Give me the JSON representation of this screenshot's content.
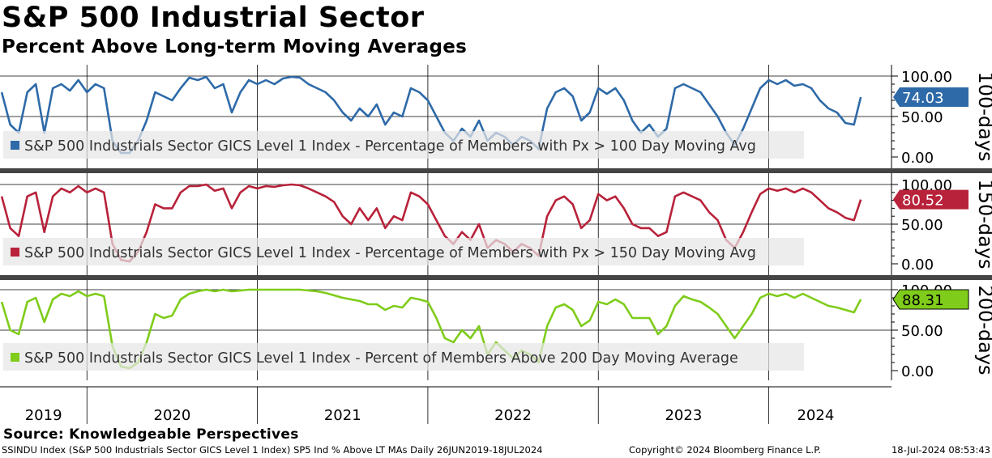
{
  "title": "S&P 500 Industrial Sector",
  "subtitle": "Percent Above Long-term Moving Averages",
  "source": "Source: Knowledgeable Perspectives",
  "footer": {
    "left": "SSINDU Index (S&P 500 Industrials Sector GICS Level 1 Index) SP5 Ind % Above LT MAs  Daily 26JUN2019-18JUL2024",
    "middle": "Copyright© 2024 Bloomberg Finance L.P.",
    "right": "18-Jul-2024 08:53:43"
  },
  "chart_data": [
    {
      "type": "line",
      "panel_label": "100-days",
      "legend": "S&P 500 Industrials Sector GICS Level 1 Index - Percentage of Members with Px > 100 Day Moving Avg",
      "last_value": "74.03",
      "color": "#2e6aa8",
      "faded_color": "#96b6d6",
      "y_ticks": [
        "100.00",
        "50.00",
        "0.00"
      ],
      "ylim": [
        0,
        100
      ],
      "x": [
        2019.5,
        2019.55,
        2019.6,
        2019.65,
        2019.7,
        2019.75,
        2019.8,
        2019.85,
        2019.9,
        2019.95,
        2020.0,
        2020.05,
        2020.1,
        2020.15,
        2020.2,
        2020.25,
        2020.3,
        2020.35,
        2020.4,
        2020.45,
        2020.5,
        2020.55,
        2020.6,
        2020.65,
        2020.7,
        2020.75,
        2020.8,
        2020.85,
        2020.9,
        2020.95,
        2021.0,
        2021.05,
        2021.1,
        2021.15,
        2021.2,
        2021.25,
        2021.3,
        2021.35,
        2021.4,
        2021.45,
        2021.5,
        2021.55,
        2021.6,
        2021.65,
        2021.7,
        2021.75,
        2021.8,
        2021.85,
        2021.9,
        2021.95,
        2022.0,
        2022.05,
        2022.1,
        2022.15,
        2022.2,
        2022.25,
        2022.3,
        2022.35,
        2022.4,
        2022.45,
        2022.5,
        2022.55,
        2022.6,
        2022.65,
        2022.7,
        2022.75,
        2022.8,
        2022.85,
        2022.9,
        2022.95,
        2023.0,
        2023.05,
        2023.1,
        2023.15,
        2023.2,
        2023.25,
        2023.3,
        2023.35,
        2023.4,
        2023.45,
        2023.5,
        2023.55,
        2023.6,
        2023.65,
        2023.7,
        2023.75,
        2023.8,
        2023.85,
        2023.9,
        2023.95,
        2024.0,
        2024.05,
        2024.1,
        2024.15,
        2024.2,
        2024.25,
        2024.3,
        2024.35,
        2024.4,
        2024.45,
        2024.5,
        2024.54
      ],
      "values": [
        80,
        40,
        30,
        80,
        90,
        30,
        85,
        90,
        82,
        95,
        80,
        90,
        85,
        20,
        5,
        5,
        20,
        45,
        80,
        75,
        70,
        85,
        98,
        95,
        99,
        85,
        90,
        55,
        80,
        95,
        90,
        95,
        90,
        97,
        99,
        98,
        90,
        85,
        80,
        70,
        55,
        45,
        60,
        50,
        65,
        40,
        55,
        50,
        85,
        80,
        70,
        50,
        30,
        20,
        35,
        25,
        45,
        20,
        30,
        25,
        15,
        25,
        20,
        10,
        60,
        80,
        85,
        75,
        45,
        55,
        85,
        78,
        85,
        70,
        45,
        30,
        40,
        25,
        35,
        85,
        90,
        85,
        80,
        65,
        50,
        30,
        15,
        35,
        60,
        85,
        95,
        90,
        95,
        88,
        90,
        85,
        70,
        60,
        55,
        42,
        40,
        74
      ]
    },
    {
      "type": "line",
      "panel_label": "150-days",
      "legend": "S&P 500 Industrials Sector GICS Level 1 Index - Percentage of Members with Px > 150 Day Moving Avg",
      "last_value": "80.52",
      "color": "#b8223a",
      "faded_color": "#dc9aa6",
      "y_ticks": [
        "100.00",
        "50.00",
        "0.00"
      ],
      "ylim": [
        0,
        100
      ],
      "x": [
        2019.5,
        2019.55,
        2019.6,
        2019.65,
        2019.7,
        2019.75,
        2019.8,
        2019.85,
        2019.9,
        2019.95,
        2020.0,
        2020.05,
        2020.1,
        2020.15,
        2020.2,
        2020.25,
        2020.3,
        2020.35,
        2020.4,
        2020.45,
        2020.5,
        2020.55,
        2020.6,
        2020.65,
        2020.7,
        2020.75,
        2020.8,
        2020.85,
        2020.9,
        2020.95,
        2021.0,
        2021.05,
        2021.1,
        2021.15,
        2021.2,
        2021.25,
        2021.3,
        2021.35,
        2021.4,
        2021.45,
        2021.5,
        2021.55,
        2021.6,
        2021.65,
        2021.7,
        2021.75,
        2021.8,
        2021.85,
        2021.9,
        2021.95,
        2022.0,
        2022.05,
        2022.1,
        2022.15,
        2022.2,
        2022.25,
        2022.3,
        2022.35,
        2022.4,
        2022.45,
        2022.5,
        2022.55,
        2022.6,
        2022.65,
        2022.7,
        2022.75,
        2022.8,
        2022.85,
        2022.9,
        2022.95,
        2023.0,
        2023.05,
        2023.1,
        2023.15,
        2023.2,
        2023.25,
        2023.3,
        2023.35,
        2023.4,
        2023.45,
        2023.5,
        2023.55,
        2023.6,
        2023.65,
        2023.7,
        2023.75,
        2023.8,
        2023.85,
        2023.9,
        2023.95,
        2024.0,
        2024.05,
        2024.1,
        2024.15,
        2024.2,
        2024.25,
        2024.3,
        2024.35,
        2024.4,
        2024.45,
        2024.5,
        2024.54
      ],
      "values": [
        85,
        45,
        35,
        85,
        90,
        40,
        85,
        95,
        90,
        98,
        90,
        95,
        90,
        25,
        5,
        3,
        15,
        40,
        75,
        70,
        70,
        90,
        98,
        98,
        100,
        92,
        95,
        70,
        90,
        98,
        95,
        98,
        97,
        99,
        100,
        99,
        95,
        90,
        85,
        78,
        60,
        50,
        70,
        55,
        70,
        45,
        60,
        55,
        90,
        85,
        75,
        55,
        35,
        25,
        40,
        30,
        50,
        20,
        30,
        25,
        15,
        25,
        20,
        10,
        60,
        80,
        85,
        75,
        45,
        55,
        88,
        80,
        85,
        70,
        50,
        45,
        45,
        35,
        40,
        85,
        90,
        85,
        80,
        65,
        55,
        30,
        20,
        40,
        65,
        88,
        95,
        92,
        95,
        90,
        95,
        90,
        80,
        70,
        65,
        58,
        55,
        81
      ]
    },
    {
      "type": "line",
      "panel_label": "200-days",
      "legend": "S&P 500 Industrials Sector GICS Level 1 Index - Percent of Members Above 200 Day Moving Average",
      "last_value": "88.31",
      "color": "#7fcc1a",
      "faded_color": "#c3e69b",
      "y_ticks": [
        "100.00",
        "50.00",
        "0.00"
      ],
      "ylim": [
        0,
        100
      ],
      "x": [
        2019.5,
        2019.55,
        2019.6,
        2019.65,
        2019.7,
        2019.75,
        2019.8,
        2019.85,
        2019.9,
        2019.95,
        2020.0,
        2020.05,
        2020.1,
        2020.15,
        2020.2,
        2020.25,
        2020.3,
        2020.35,
        2020.4,
        2020.45,
        2020.5,
        2020.55,
        2020.6,
        2020.65,
        2020.7,
        2020.75,
        2020.8,
        2020.85,
        2020.9,
        2020.95,
        2021.0,
        2021.05,
        2021.1,
        2021.15,
        2021.2,
        2021.25,
        2021.3,
        2021.35,
        2021.4,
        2021.45,
        2021.5,
        2021.55,
        2021.6,
        2021.65,
        2021.7,
        2021.75,
        2021.8,
        2021.85,
        2021.9,
        2021.95,
        2022.0,
        2022.05,
        2022.1,
        2022.15,
        2022.2,
        2022.25,
        2022.3,
        2022.35,
        2022.4,
        2022.45,
        2022.5,
        2022.55,
        2022.6,
        2022.65,
        2022.7,
        2022.75,
        2022.8,
        2022.85,
        2022.9,
        2022.95,
        2023.0,
        2023.05,
        2023.1,
        2023.15,
        2023.2,
        2023.25,
        2023.3,
        2023.35,
        2023.4,
        2023.45,
        2023.5,
        2023.55,
        2023.6,
        2023.65,
        2023.7,
        2023.75,
        2023.8,
        2023.85,
        2023.9,
        2023.95,
        2024.0,
        2024.05,
        2024.1,
        2024.15,
        2024.2,
        2024.25,
        2024.3,
        2024.35,
        2024.4,
        2024.45,
        2024.5,
        2024.54
      ],
      "values": [
        85,
        50,
        45,
        85,
        90,
        60,
        88,
        95,
        92,
        98,
        92,
        95,
        92,
        30,
        5,
        3,
        10,
        35,
        70,
        65,
        68,
        88,
        95,
        98,
        100,
        98,
        100,
        98,
        99,
        100,
        100,
        100,
        100,
        100,
        100,
        100,
        99,
        98,
        96,
        93,
        90,
        88,
        86,
        82,
        82,
        75,
        80,
        78,
        90,
        88,
        85,
        65,
        40,
        35,
        50,
        40,
        55,
        20,
        35,
        25,
        15,
        25,
        20,
        10,
        55,
        78,
        82,
        75,
        55,
        62,
        85,
        82,
        88,
        82,
        65,
        65,
        65,
        45,
        55,
        80,
        92,
        88,
        85,
        78,
        70,
        55,
        40,
        55,
        70,
        90,
        95,
        92,
        95,
        90,
        95,
        90,
        85,
        80,
        78,
        75,
        72,
        88
      ]
    }
  ],
  "x_axis": {
    "years": [
      "2019",
      "2020",
      "2021",
      "2022",
      "2023",
      "2024"
    ],
    "year_boundaries": [
      2020,
      2021,
      2022,
      2023,
      2024
    ],
    "range": [
      2019.49,
      2024.72
    ]
  }
}
